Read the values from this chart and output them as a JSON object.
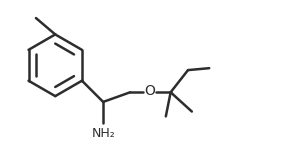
{
  "bg_color": "#ffffff",
  "line_color": "#2d2d2d",
  "line_width": 1.8,
  "font_size": 9,
  "NH2_label": "NH₂",
  "O_label": "O",
  "figsize": [
    2.84,
    1.43
  ],
  "dpi": 100
}
